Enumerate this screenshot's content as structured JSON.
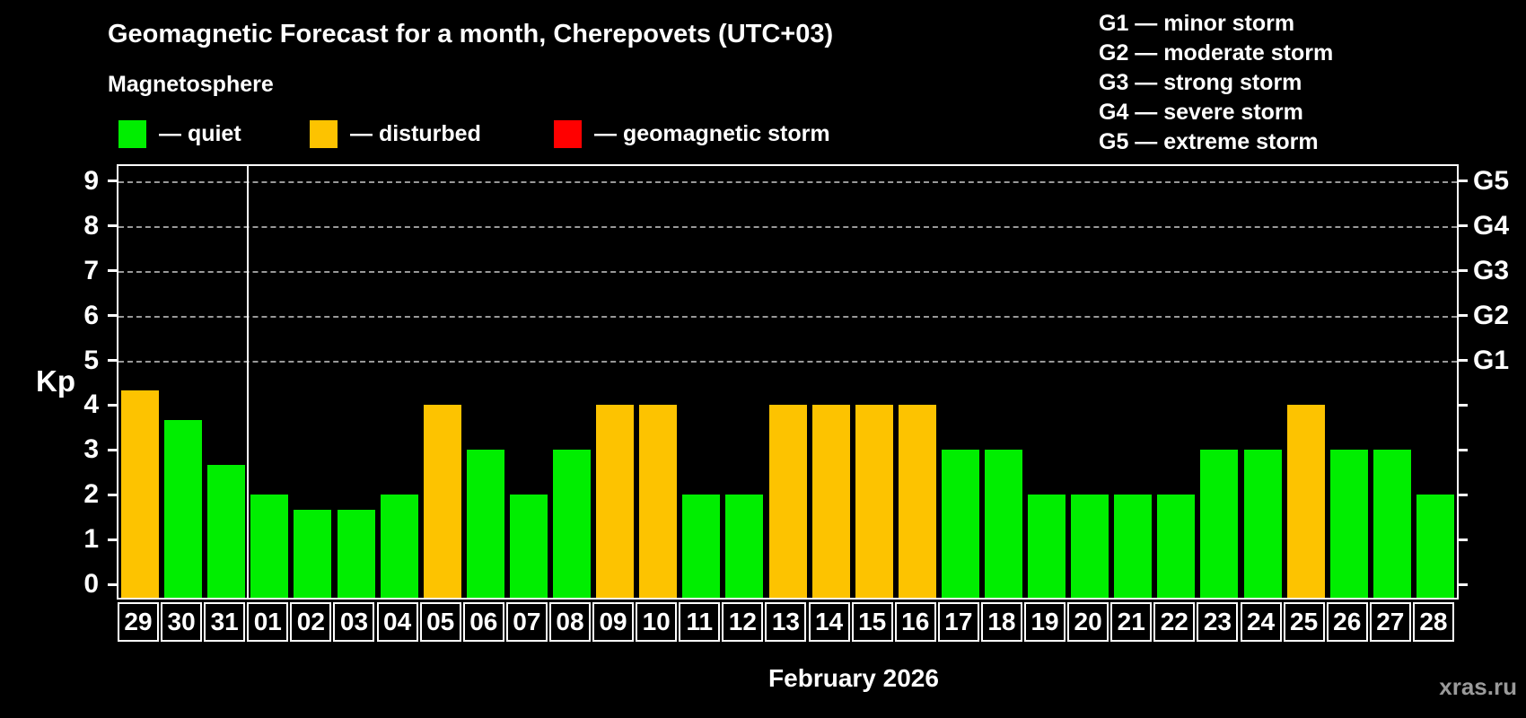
{
  "title": "Geomagnetic Forecast for a month, Cherepovets (UTC+03)",
  "subtitle": "Magnetosphere",
  "legend": {
    "items": [
      {
        "label": "— quiet",
        "state": "quiet",
        "color": "#00ee00"
      },
      {
        "label": "— disturbed",
        "state": "disturbed",
        "color": "#fdc300"
      },
      {
        "label": "— geomagnetic storm",
        "state": "storm",
        "color": "#ff0000"
      }
    ]
  },
  "g_scale_legend": {
    "lines": [
      "G1 — minor storm",
      "G2 — moderate storm",
      "G3 — strong storm",
      "G4 — severe storm",
      "G5 — extreme storm"
    ]
  },
  "y_axis": {
    "label": "Kp",
    "ticks": [
      0,
      1,
      2,
      3,
      4,
      5,
      6,
      7,
      8,
      9
    ]
  },
  "right_axis": {
    "labels": [
      {
        "kp": 5,
        "text": "G1"
      },
      {
        "kp": 6,
        "text": "G2"
      },
      {
        "kp": 7,
        "text": "G3"
      },
      {
        "kp": 8,
        "text": "G4"
      },
      {
        "kp": 9,
        "text": "G5"
      }
    ]
  },
  "x_axis": {
    "label": "February 2026"
  },
  "watermark": "xras.ru",
  "chart_data": {
    "type": "bar",
    "title": "Geomagnetic Forecast for a month, Cherepovets (UTC+03)",
    "xlabel": "February 2026",
    "ylabel": "Kp",
    "ylim": [
      0,
      9
    ],
    "gridlines_kp": [
      5,
      6,
      7,
      8,
      9
    ],
    "legend_position": "top",
    "month_separator_after_category": "31",
    "categories": [
      "29",
      "30",
      "31",
      "01",
      "02",
      "03",
      "04",
      "05",
      "06",
      "07",
      "08",
      "09",
      "10",
      "11",
      "12",
      "13",
      "14",
      "15",
      "16",
      "17",
      "18",
      "19",
      "20",
      "21",
      "22",
      "23",
      "24",
      "25",
      "26",
      "27",
      "28"
    ],
    "values": [
      4.33,
      3.67,
      2.67,
      2,
      1.67,
      1.67,
      2,
      4,
      3,
      2,
      3,
      4,
      4,
      2,
      2,
      4,
      4,
      4,
      4,
      3,
      3,
      2,
      2,
      2,
      2,
      3,
      3,
      4,
      3,
      3,
      2
    ],
    "states": [
      "disturbed",
      "quiet",
      "quiet",
      "quiet",
      "quiet",
      "quiet",
      "quiet",
      "disturbed",
      "quiet",
      "quiet",
      "quiet",
      "disturbed",
      "disturbed",
      "quiet",
      "quiet",
      "disturbed",
      "disturbed",
      "disturbed",
      "disturbed",
      "quiet",
      "quiet",
      "quiet",
      "quiet",
      "quiet",
      "quiet",
      "quiet",
      "quiet",
      "disturbed",
      "quiet",
      "quiet",
      "quiet"
    ],
    "state_colors": {
      "quiet": "#00ee00",
      "disturbed": "#fdc300",
      "storm": "#ff0000"
    }
  }
}
